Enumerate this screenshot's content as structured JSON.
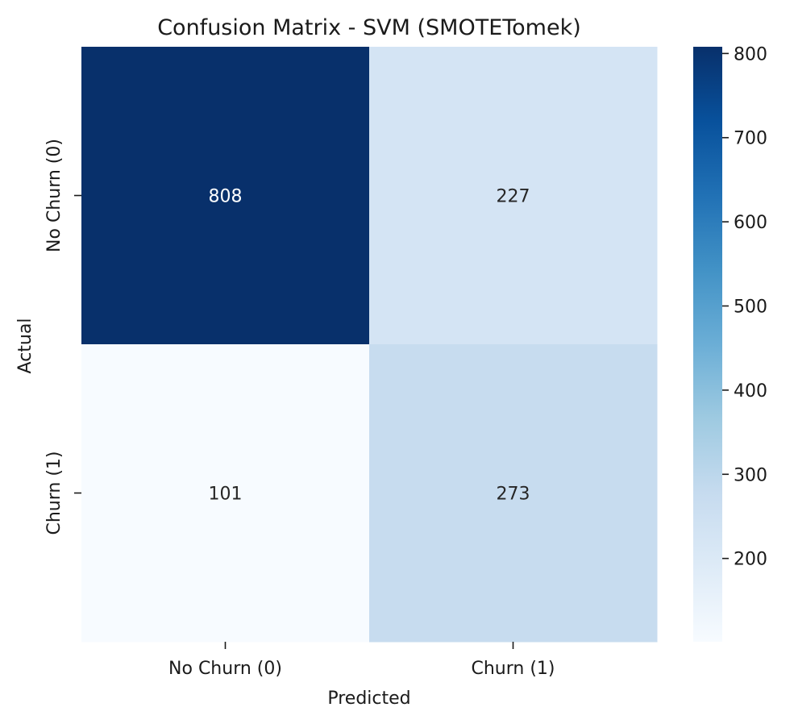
{
  "chart_data": {
    "type": "heatmap",
    "title": "Confusion Matrix - SVM (SMOTETomek)",
    "xlabel": "Predicted",
    "ylabel": "Actual",
    "x_categories": [
      "No Churn (0)",
      "Churn (1)"
    ],
    "y_categories": [
      "No Churn (0)",
      "Churn (1)"
    ],
    "values": [
      [
        808,
        227
      ],
      [
        101,
        273
      ]
    ],
    "annotations": [
      [
        "808",
        "227"
      ],
      [
        "101",
        "273"
      ]
    ],
    "colormap": "Blues",
    "colorbar": {
      "range": [
        101,
        808
      ],
      "ticks": [
        200,
        300,
        400,
        500,
        600,
        700,
        800
      ],
      "tick_labels": [
        "200",
        "300",
        "400",
        "500",
        "600",
        "700",
        "800"
      ]
    },
    "grid": false,
    "legend": "colorbar right"
  },
  "colors": {
    "scale": [
      "#f7fbff",
      "#deebf7",
      "#c6dbef",
      "#9ecae1",
      "#6baed6",
      "#4292c6",
      "#2171b5",
      "#08519c",
      "#08306b"
    ],
    "text_dark": "#262626",
    "text_light": "#ffffff"
  }
}
